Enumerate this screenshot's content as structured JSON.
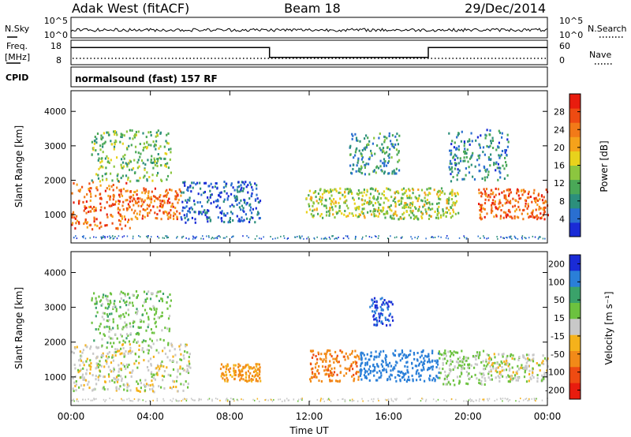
{
  "header": {
    "station": "Adak West (fitACF)",
    "beam": "Beam 18",
    "date": "29/Dec/2014"
  },
  "summary_labels": {
    "nsky": "N.Sky",
    "nsky_ticks": [
      "10^5",
      "10^0"
    ],
    "nsearch": "N.Search",
    "nsearch_ticks": [
      "10^5",
      "10^0"
    ],
    "freq": "Freq.",
    "freq_unit": "[MHz]",
    "freq_ticks": [
      "18",
      "8"
    ],
    "nave": "Nave",
    "nave_ticks": [
      "60",
      "0"
    ],
    "cpid": "CPID",
    "cpid_name": "normalsound (fast) 157 RF"
  },
  "chart_data": [
    {
      "type": "heatmap",
      "name": "power",
      "xlabel": "",
      "ylabel": "Slant Range [km]",
      "x_ticks": [
        "00:00",
        "04:00",
        "08:00",
        "12:00",
        "16:00",
        "20:00",
        "00:00"
      ],
      "y_ticks": [
        1000,
        2000,
        3000,
        4000
      ],
      "ylim": [
        180,
        4600
      ],
      "colorbar": {
        "label": "Power [dB]",
        "ticks": [
          4,
          8,
          12,
          16,
          20,
          24,
          28
        ],
        "colors": [
          "#1a2bd6",
          "#2a6fd0",
          "#2c8f7c",
          "#4aa857",
          "#8cc63f",
          "#e8d21c",
          "#f5a21b",
          "#f27a18",
          "#ee4b12",
          "#e81c0e"
        ]
      },
      "regions": [
        {
          "t0": 0.0,
          "t1": 3.0,
          "r0": 600,
          "r1": 2000,
          "db": 26
        },
        {
          "t0": 3.0,
          "t1": 5.5,
          "r0": 900,
          "r1": 1800,
          "db": 25
        },
        {
          "t0": 1.0,
          "t1": 5.0,
          "r0": 2000,
          "r1": 3500,
          "db": 14
        },
        {
          "t0": 5.5,
          "t1": 9.5,
          "r0": 800,
          "r1": 2000,
          "db": 6
        },
        {
          "t0": 11.8,
          "t1": 19.5,
          "r0": 900,
          "r1": 1800,
          "db": 16
        },
        {
          "t0": 14.0,
          "t1": 16.5,
          "r0": 2200,
          "r1": 3400,
          "db": 10
        },
        {
          "t0": 20.5,
          "t1": 24.0,
          "r0": 900,
          "r1": 1800,
          "db": 26
        },
        {
          "t0": 19.0,
          "t1": 22.0,
          "r0": 2000,
          "r1": 3500,
          "db": 9
        }
      ]
    },
    {
      "type": "heatmap",
      "name": "velocity",
      "xlabel": "Time UT",
      "ylabel": "Slant Range [km]",
      "x_ticks": [
        "00:00",
        "04:00",
        "08:00",
        "12:00",
        "16:00",
        "20:00",
        "00:00"
      ],
      "y_ticks": [
        1000,
        2000,
        3000,
        4000
      ],
      "ylim": [
        180,
        4600
      ],
      "colorbar": {
        "label": "Velocity [m s⁻¹]",
        "ticks": [
          200,
          100,
          50,
          15,
          -15,
          -50,
          -100,
          -200
        ],
        "colors": [
          "#1a2bd6",
          "#2a7fd8",
          "#3aa26a",
          "#6cc23f",
          "#c8c8c8",
          "#f5b21b",
          "#f28a18",
          "#ee4b12",
          "#e81c0e"
        ]
      },
      "regions": [
        {
          "t0": 0.0,
          "t1": 6.0,
          "r0": 600,
          "r1": 2000,
          "vel": 0
        },
        {
          "t0": 1.0,
          "t1": 5.0,
          "r0": 2000,
          "r1": 3500,
          "vel": 30
        },
        {
          "t0": 7.5,
          "t1": 9.5,
          "r0": 900,
          "r1": 1400,
          "vel": -60
        },
        {
          "t0": 12.0,
          "t1": 14.5,
          "r0": 900,
          "r1": 1800,
          "vel": -80
        },
        {
          "t0": 14.5,
          "t1": 18.5,
          "r0": 900,
          "r1": 1800,
          "vel": 150
        },
        {
          "t0": 18.5,
          "t1": 21.0,
          "r0": 800,
          "r1": 1800,
          "vel": 20
        },
        {
          "t0": 21.0,
          "t1": 24.0,
          "r0": 900,
          "r1": 1700,
          "vel": 0
        },
        {
          "t0": 15.0,
          "t1": 16.2,
          "r0": 2500,
          "r1": 3300,
          "vel": 200
        }
      ]
    }
  ],
  "freq_trace": [
    {
      "t": 0.0,
      "mhz": 15
    },
    {
      "t": 10.0,
      "mhz": 15
    },
    {
      "t": 10.0,
      "mhz": 11
    },
    {
      "t": 18.0,
      "mhz": 11
    },
    {
      "t": 18.0,
      "mhz": 15
    },
    {
      "t": 24.0,
      "mhz": 15
    }
  ],
  "colors": {
    "axis": "#000000",
    "background": "#ffffff"
  }
}
